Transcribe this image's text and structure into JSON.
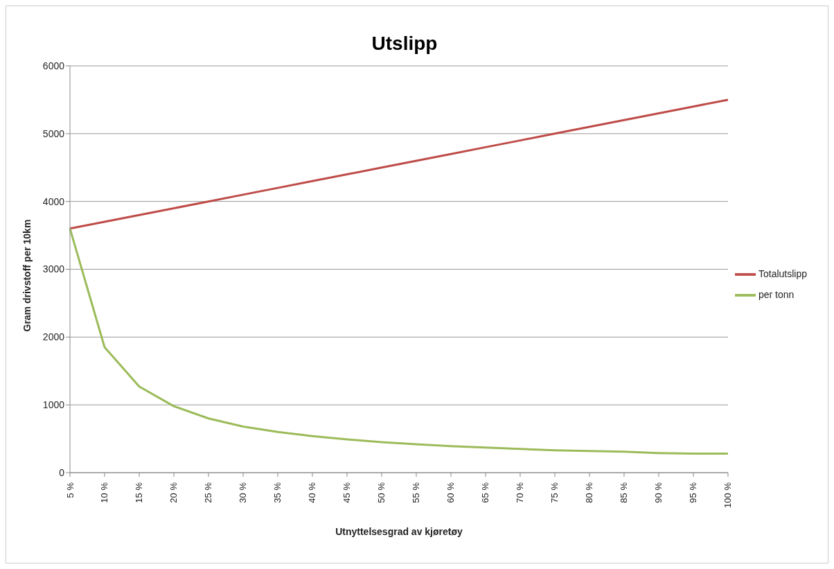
{
  "chart_data": {
    "type": "line",
    "title": "Utslipp",
    "xlabel": "Utnyttelsesgrad av kjøretøy",
    "ylabel": "Gram drivstoff per 10km",
    "categories": [
      "5 %",
      "10 %",
      "15 %",
      "20 %",
      "25 %",
      "30 %",
      "35 %",
      "40 %",
      "45 %",
      "50 %",
      "55 %",
      "60 %",
      "65 %",
      "70 %",
      "75 %",
      "80 %",
      "85 %",
      "90 %",
      "95 %",
      "100 %"
    ],
    "series": [
      {
        "name": "Totalutslipp",
        "color": "#be4b48",
        "values": [
          3600,
          3700,
          3800,
          3900,
          4000,
          4100,
          4200,
          4300,
          4400,
          4500,
          4600,
          4700,
          4800,
          4900,
          5000,
          5100,
          5200,
          5300,
          5400,
          5500
        ]
      },
      {
        "name": "per tonn",
        "color": "#9bbb59",
        "values": [
          3600,
          1850,
          1270,
          980,
          800,
          680,
          600,
          540,
          490,
          450,
          420,
          390,
          370,
          350,
          330,
          320,
          310,
          290,
          280,
          280
        ]
      }
    ],
    "ylim": [
      0,
      6000
    ],
    "yticks": [
      0,
      1000,
      2000,
      3000,
      4000,
      5000,
      6000
    ],
    "grid": "y",
    "legend": "right",
    "marker": "none",
    "line_style": "solid"
  }
}
